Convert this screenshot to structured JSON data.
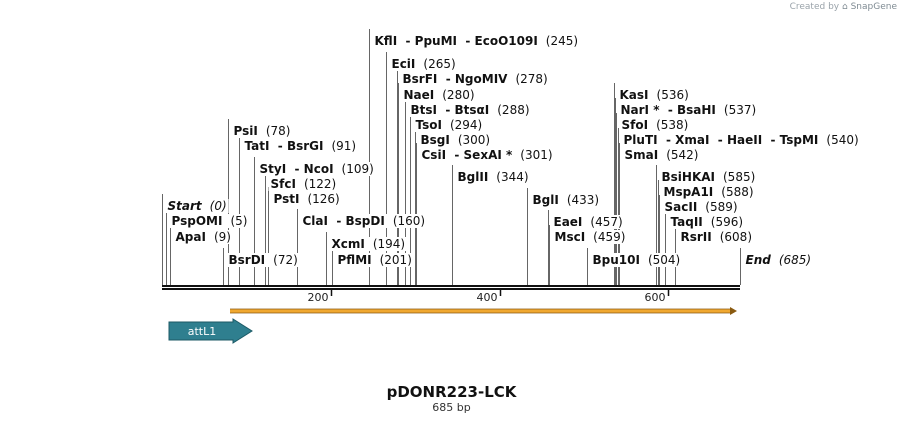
{
  "credit": {
    "prefix": "Created by",
    "brand": "SnapGene"
  },
  "plasmid": {
    "name": "pDONR223-LCK",
    "length_label": "685 bp"
  },
  "ruler": {
    "ticks": [
      {
        "value": 200,
        "label": "200"
      },
      {
        "value": 400,
        "label": "400"
      },
      {
        "value": 600,
        "label": "600"
      }
    ]
  },
  "features": [
    {
      "name": "attL1",
      "type": "arrow",
      "color": "#2f7f8f"
    },
    {
      "name": "orf",
      "type": "orf",
      "color": "#f0a830"
    }
  ],
  "labels": [
    {
      "text": "Start",
      "pos": "(0)",
      "site": 0,
      "row": 206,
      "style": "italic"
    },
    {
      "text": "PspOMI",
      "pos": "(5)",
      "site": 5,
      "row": 221
    },
    {
      "text": "ApaI",
      "pos": "(9)",
      "site": 9,
      "row": 237
    },
    {
      "text": "BsrDI",
      "pos": "(72)",
      "site": 72,
      "row": 260
    },
    {
      "text": "PsiI",
      "pos": "(78)",
      "site": 78,
      "row": 131
    },
    {
      "text": "TatI  - BsrGI",
      "pos": "(91)",
      "site": 91,
      "row": 146
    },
    {
      "text": "StyI  - NcoI",
      "pos": "(109)",
      "site": 109,
      "row": 169
    },
    {
      "text": "SfcI",
      "pos": "(122)",
      "site": 122,
      "row": 184
    },
    {
      "text": "PstI",
      "pos": "(126)",
      "site": 126,
      "row": 199
    },
    {
      "text": "ClaI  - BspDI",
      "pos": "(160)",
      "site": 160,
      "row": 221
    },
    {
      "text": "XcmI",
      "pos": "(194)",
      "site": 194,
      "row": 244
    },
    {
      "text": "PflMI",
      "pos": "(201)",
      "site": 201,
      "row": 260
    },
    {
      "text": "KflI  - PpuMI  - EcoO109I",
      "pos": "(245)",
      "site": 245,
      "row": 41
    },
    {
      "text": "EciI",
      "pos": "(265)",
      "site": 265,
      "row": 64
    },
    {
      "text": "BsrFI  - NgoMIV",
      "pos": "(278)",
      "site": 278,
      "row": 79
    },
    {
      "text": "NaeI",
      "pos": "(280)",
      "site": 280,
      "row": 95
    },
    {
      "text": "BtsI  - BtsαI",
      "pos": "(288)",
      "site": 288,
      "row": 110
    },
    {
      "text": "TsoI",
      "pos": "(294)",
      "site": 294,
      "row": 125
    },
    {
      "text": "BsgI",
      "pos": "(300)",
      "site": 300,
      "row": 140
    },
    {
      "text": "CsiI  - SexAI *",
      "pos": "(301)",
      "site": 301,
      "row": 155
    },
    {
      "text": "BglII",
      "pos": "(344)",
      "site": 344,
      "row": 177
    },
    {
      "text": "BglI",
      "pos": "(433)",
      "site": 433,
      "row": 200
    },
    {
      "text": "EaeI",
      "pos": "(457)",
      "site": 457,
      "row": 222
    },
    {
      "text": "MscI",
      "pos": "(459)",
      "site": 459,
      "row": 237
    },
    {
      "text": "Bpu10I",
      "pos": "(504)",
      "site": 504,
      "row": 260
    },
    {
      "text": "KasI",
      "pos": "(536)",
      "site": 536,
      "row": 95
    },
    {
      "text": "NarI *  - BsaHI",
      "pos": "(537)",
      "site": 537,
      "row": 110
    },
    {
      "text": "SfoI",
      "pos": "(538)",
      "site": 538,
      "row": 125
    },
    {
      "text": "PluTI  - XmaI  - HaeII  - TspMI",
      "pos": "(540)",
      "site": 540,
      "row": 140
    },
    {
      "text": "SmaI",
      "pos": "(542)",
      "site": 542,
      "row": 155
    },
    {
      "text": "BsiHKAI",
      "pos": "(585)",
      "site": 585,
      "row": 177
    },
    {
      "text": "MspA1I",
      "pos": "(588)",
      "site": 588,
      "row": 192
    },
    {
      "text": "SacII",
      "pos": "(589)",
      "site": 589,
      "row": 207
    },
    {
      "text": "TaqII",
      "pos": "(596)",
      "site": 596,
      "row": 222
    },
    {
      "text": "RsrII",
      "pos": "(608)",
      "site": 608,
      "row": 237
    },
    {
      "text": "End",
      "pos": "(685)",
      "site": 685,
      "row": 260,
      "style": "italic"
    }
  ]
}
